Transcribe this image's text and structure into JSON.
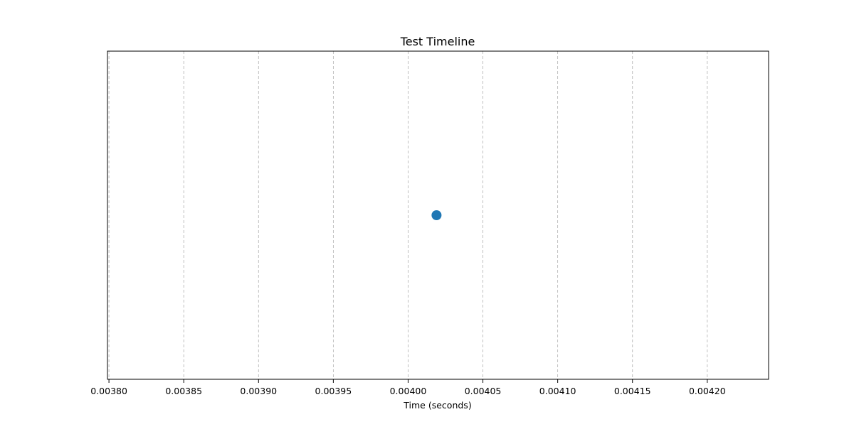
{
  "chart_data": {
    "type": "scatter",
    "title": "Test Timeline",
    "xlabel": "Time (seconds)",
    "ylabel": "",
    "xlim": [
      0.003799,
      0.004241
    ],
    "ylim": [
      -1,
      1
    ],
    "x_ticks": [
      0.0038,
      0.00385,
      0.0039,
      0.00395,
      0.004,
      0.00405,
      0.0041,
      0.00415,
      0.0042
    ],
    "x_tick_labels": [
      "0.00380",
      "0.00385",
      "0.00390",
      "0.00395",
      "0.00400",
      "0.00405",
      "0.00410",
      "0.00415",
      "0.00420"
    ],
    "y_ticks_visible": false,
    "grid": {
      "x": true,
      "y": false,
      "style": "dashed",
      "color": "#b0b0b0"
    },
    "series": [
      {
        "color": "#1f77b4",
        "points": [
          {
            "x": 0.004019,
            "y": 0
          }
        ]
      }
    ]
  }
}
